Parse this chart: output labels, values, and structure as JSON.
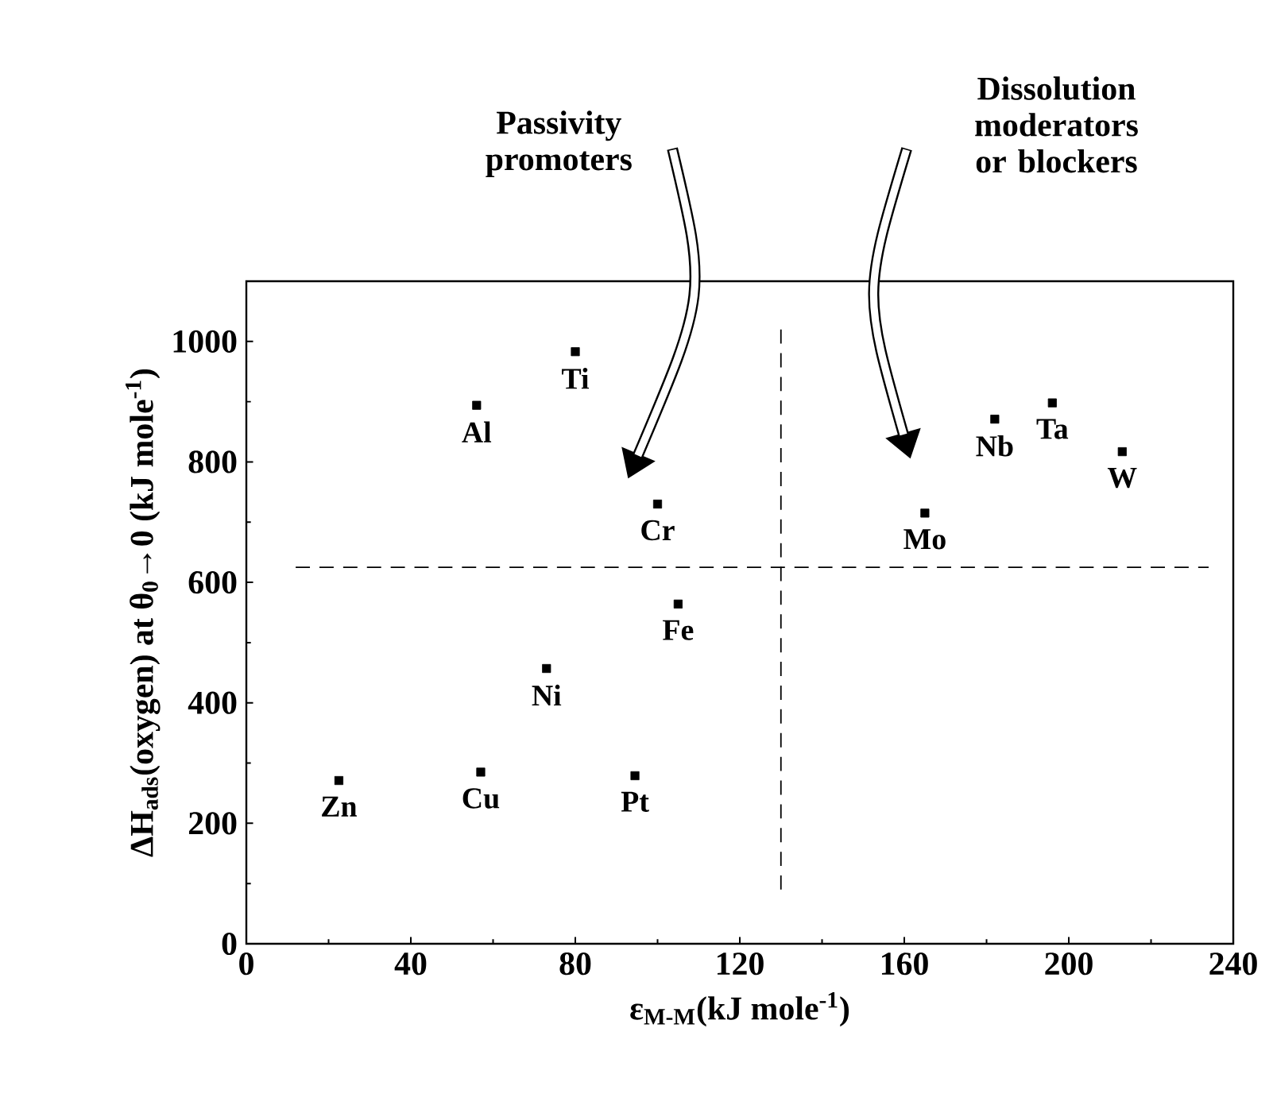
{
  "chart_data": {
    "type": "scatter",
    "xlabel": "ε$_{M-M}$(kJ mole$^{-1}$)",
    "ylabel": "ΔH$_{ads}$(oxygen) at θ$_{0}$→0 (kJ mole$^{-1}$)",
    "x": [
      22.5,
      57,
      73,
      94.5,
      56,
      80,
      100,
      105,
      165,
      182,
      196,
      213
    ],
    "series": [
      {
        "color": "#000000",
        "values": [
          271,
          285,
          457,
          279,
          894,
          983,
          730,
          564,
          715,
          871,
          898,
          817
        ]
      }
    ],
    "marker": "square",
    "xlim": [
      0,
      240
    ],
    "xticks": [
      0,
      40,
      80,
      120,
      160,
      200,
      240
    ],
    "ylim": [
      0,
      1100
    ],
    "yticks": [
      0,
      200,
      400,
      600,
      800,
      1000
    ],
    "grid": false,
    "ref_lines": [
      {
        "axis": "y",
        "value": 625,
        "color": "#000000",
        "line_style": "dashed"
      },
      {
        "axis": "x",
        "value": 130,
        "color": "#000000",
        "line_style": "dashed"
      }
    ],
    "annotations": [
      {
        "text": "Zn",
        "x": 22.5,
        "y": 271
      },
      {
        "text": "Cu",
        "x": 57,
        "y": 285
      },
      {
        "text": "Ni",
        "x": 73,
        "y": 457
      },
      {
        "text": "Pt",
        "x": 94.5,
        "y": 279
      },
      {
        "text": "Al",
        "x": 56,
        "y": 894
      },
      {
        "text": "Ti",
        "x": 80,
        "y": 983
      },
      {
        "text": "Cr",
        "x": 100,
        "y": 730
      },
      {
        "text": "Fe",
        "x": 105,
        "y": 564
      },
      {
        "text": "Mo",
        "x": 165,
        "y": 715
      },
      {
        "text": "Nb",
        "x": 182,
        "y": 871
      },
      {
        "text": "Ta",
        "x": 196,
        "y": 898
      },
      {
        "text": "W",
        "x": 213,
        "y": 817
      },
      "Passivity promoters",
      "Dissolution moderators or blockers"
    ]
  }
}
